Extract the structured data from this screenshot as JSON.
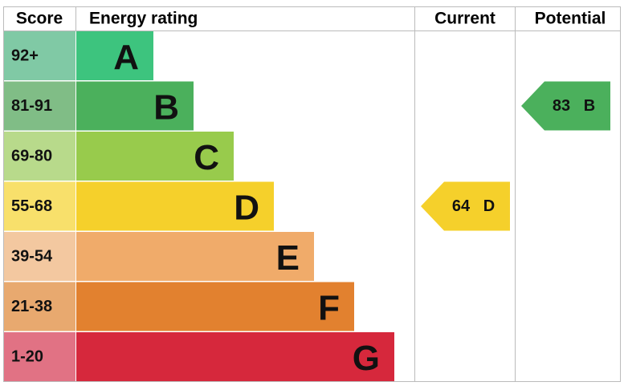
{
  "header": {
    "score": "Score",
    "energy_rating": "Energy rating",
    "current": "Current",
    "potential": "Potential"
  },
  "bands": [
    {
      "score": "92+",
      "letter": "A",
      "color": "#3dc47e",
      "score_color": "#80c9a5"
    },
    {
      "score": "81-91",
      "letter": "B",
      "color": "#4bb05c",
      "score_color": "#80bd86"
    },
    {
      "score": "69-80",
      "letter": "C",
      "color": "#98cb4c",
      "score_color": "#b8da8b"
    },
    {
      "score": "55-68",
      "letter": "D",
      "color": "#f5d02b",
      "score_color": "#f8e06b"
    },
    {
      "score": "39-54",
      "letter": "E",
      "color": "#f0ab6a",
      "score_color": "#f3c8a0"
    },
    {
      "score": "21-38",
      "letter": "F",
      "color": "#e2812f",
      "score_color": "#e8a96f"
    },
    {
      "score": "1-20",
      "letter": "G",
      "color": "#d6283c",
      "score_color": "#e17284"
    }
  ],
  "current": {
    "value": 64,
    "letter": "D"
  },
  "potential": {
    "value": 83,
    "letter": "B"
  }
}
